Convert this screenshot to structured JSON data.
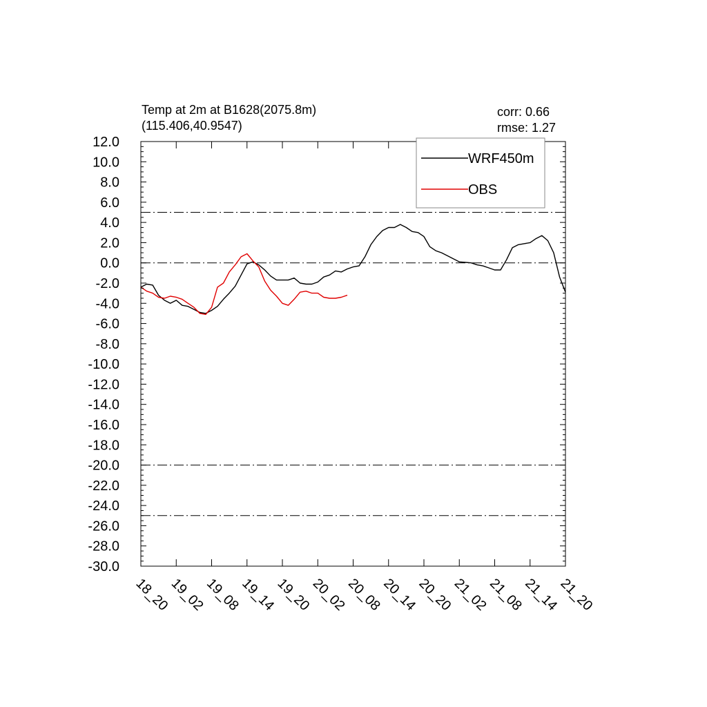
{
  "title_line1": "Temp at 2m at B1628(2075.8m)",
  "title_line2": "(115.406,40.9547)",
  "stats": {
    "corr_label": "corr:  0.66",
    "rmse_label": "rmse: 1.27"
  },
  "legend_position": "top-right",
  "chart_data": {
    "type": "line",
    "grid": false,
    "xlim": [
      0,
      72
    ],
    "ylim": [
      -30,
      12
    ],
    "y_ticks": [
      12,
      10,
      8,
      6,
      4,
      2,
      0,
      -2,
      -4,
      -6,
      -8,
      -10,
      -12,
      -14,
      -16,
      -18,
      -20,
      -22,
      -24,
      -26,
      -28,
      -30
    ],
    "y_tick_labels": [
      "12.0",
      "10.0",
      "8.0",
      "6.0",
      "4.0",
      "2.0",
      "0.0",
      "-2.0",
      "-4.0",
      "-6.0",
      "-8.0",
      "-10.0",
      "-12.0",
      "-14.0",
      "-16.0",
      "-18.0",
      "-20.0",
      "-22.0",
      "-24.0",
      "-26.0",
      "-28.0",
      "-30.0"
    ],
    "x_ticks": [
      0,
      6,
      12,
      18,
      24,
      30,
      36,
      42,
      48,
      54,
      60,
      66,
      72
    ],
    "x_tick_labels": [
      "18_20",
      "19_02",
      "19_08",
      "19_14",
      "19_20",
      "20_02",
      "20_08",
      "20_14",
      "20_20",
      "21_02",
      "21_08",
      "21_14",
      "21_20"
    ],
    "reference_lines": [
      5,
      0,
      -20,
      -25
    ],
    "series": [
      {
        "name": "WRF450m",
        "color": "#000000",
        "x": [
          0,
          1,
          2,
          3,
          4,
          5,
          6,
          7,
          8,
          9,
          10,
          11,
          12,
          13,
          14,
          15,
          16,
          17,
          18,
          19,
          20,
          21,
          22,
          23,
          24,
          25,
          26,
          27,
          28,
          29,
          30,
          31,
          32,
          33,
          34,
          35,
          36,
          37,
          38,
          39,
          40,
          41,
          42,
          43,
          44,
          45,
          46,
          47,
          48,
          49,
          50,
          51,
          52,
          53,
          54,
          55,
          56,
          57,
          58,
          59,
          60,
          61,
          62,
          63,
          64,
          65,
          66,
          67,
          68,
          69,
          70,
          71,
          72
        ],
        "y": [
          -2.4,
          -2.1,
          -2.2,
          -3.2,
          -3.7,
          -4.0,
          -3.7,
          -4.2,
          -4.3,
          -4.6,
          -4.9,
          -5.0,
          -4.7,
          -4.3,
          -3.6,
          -3.0,
          -2.3,
          -1.2,
          -0.1,
          0.1,
          -0.2,
          -0.7,
          -1.3,
          -1.7,
          -1.7,
          -1.7,
          -1.5,
          -2.0,
          -2.1,
          -2.1,
          -1.9,
          -1.4,
          -1.2,
          -0.8,
          -0.9,
          -0.6,
          -0.4,
          -0.3,
          0.6,
          1.8,
          2.6,
          3.2,
          3.5,
          3.5,
          3.8,
          3.5,
          3.1,
          3.0,
          2.6,
          1.6,
          1.2,
          1.0,
          0.7,
          0.4,
          0.1,
          0.05,
          0.0,
          -0.2,
          -0.3,
          -0.5,
          -0.7,
          -0.7,
          0.3,
          1.5,
          1.8,
          1.9,
          2.0,
          2.4,
          2.7,
          2.2,
          1.0,
          -1.4,
          -2.9
        ]
      },
      {
        "name": "OBS",
        "color": "#e00000",
        "x": [
          0,
          1,
          2,
          3,
          4,
          5,
          6,
          7,
          8,
          9,
          10,
          11,
          12,
          13,
          14,
          15,
          16,
          17,
          18,
          19,
          20,
          21,
          22,
          23,
          24,
          25,
          26,
          27,
          28,
          29,
          30,
          31,
          32,
          33,
          34,
          35
        ],
        "y": [
          -2.4,
          -2.8,
          -3.0,
          -3.4,
          -3.5,
          -3.3,
          -3.4,
          -3.6,
          -4.0,
          -4.4,
          -5.0,
          -5.1,
          -4.4,
          -2.4,
          -2.0,
          -0.9,
          -0.2,
          0.6,
          0.9,
          0.2,
          -0.4,
          -1.8,
          -2.7,
          -3.3,
          -4.0,
          -4.2,
          -3.6,
          -2.9,
          -2.8,
          -3.0,
          -3.0,
          -3.4,
          -3.5,
          -3.5,
          -3.4,
          -3.2
        ]
      }
    ]
  }
}
